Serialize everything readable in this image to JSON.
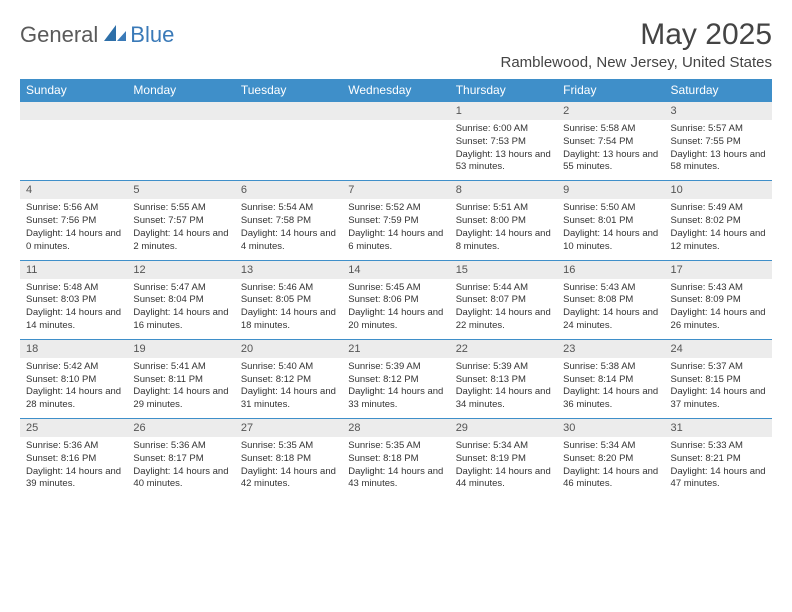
{
  "logo": {
    "general": "General",
    "blue": "Blue"
  },
  "title": "May 2025",
  "location": "Ramblewood, New Jersey, United States",
  "colors": {
    "header_bg": "#3f8fc9",
    "header_text": "#ffffff",
    "daynum_bg": "#ececec",
    "border": "#3f8fc9",
    "logo_blue": "#3a7ab8"
  },
  "daynames": [
    "Sunday",
    "Monday",
    "Tuesday",
    "Wednesday",
    "Thursday",
    "Friday",
    "Saturday"
  ],
  "weeks": [
    [
      null,
      null,
      null,
      null,
      {
        "n": "1",
        "sr": "6:00 AM",
        "ss": "7:53 PM",
        "dl": "13 hours and 53 minutes."
      },
      {
        "n": "2",
        "sr": "5:58 AM",
        "ss": "7:54 PM",
        "dl": "13 hours and 55 minutes."
      },
      {
        "n": "3",
        "sr": "5:57 AM",
        "ss": "7:55 PM",
        "dl": "13 hours and 58 minutes."
      }
    ],
    [
      {
        "n": "4",
        "sr": "5:56 AM",
        "ss": "7:56 PM",
        "dl": "14 hours and 0 minutes."
      },
      {
        "n": "5",
        "sr": "5:55 AM",
        "ss": "7:57 PM",
        "dl": "14 hours and 2 minutes."
      },
      {
        "n": "6",
        "sr": "5:54 AM",
        "ss": "7:58 PM",
        "dl": "14 hours and 4 minutes."
      },
      {
        "n": "7",
        "sr": "5:52 AM",
        "ss": "7:59 PM",
        "dl": "14 hours and 6 minutes."
      },
      {
        "n": "8",
        "sr": "5:51 AM",
        "ss": "8:00 PM",
        "dl": "14 hours and 8 minutes."
      },
      {
        "n": "9",
        "sr": "5:50 AM",
        "ss": "8:01 PM",
        "dl": "14 hours and 10 minutes."
      },
      {
        "n": "10",
        "sr": "5:49 AM",
        "ss": "8:02 PM",
        "dl": "14 hours and 12 minutes."
      }
    ],
    [
      {
        "n": "11",
        "sr": "5:48 AM",
        "ss": "8:03 PM",
        "dl": "14 hours and 14 minutes."
      },
      {
        "n": "12",
        "sr": "5:47 AM",
        "ss": "8:04 PM",
        "dl": "14 hours and 16 minutes."
      },
      {
        "n": "13",
        "sr": "5:46 AM",
        "ss": "8:05 PM",
        "dl": "14 hours and 18 minutes."
      },
      {
        "n": "14",
        "sr": "5:45 AM",
        "ss": "8:06 PM",
        "dl": "14 hours and 20 minutes."
      },
      {
        "n": "15",
        "sr": "5:44 AM",
        "ss": "8:07 PM",
        "dl": "14 hours and 22 minutes."
      },
      {
        "n": "16",
        "sr": "5:43 AM",
        "ss": "8:08 PM",
        "dl": "14 hours and 24 minutes."
      },
      {
        "n": "17",
        "sr": "5:43 AM",
        "ss": "8:09 PM",
        "dl": "14 hours and 26 minutes."
      }
    ],
    [
      {
        "n": "18",
        "sr": "5:42 AM",
        "ss": "8:10 PM",
        "dl": "14 hours and 28 minutes."
      },
      {
        "n": "19",
        "sr": "5:41 AM",
        "ss": "8:11 PM",
        "dl": "14 hours and 29 minutes."
      },
      {
        "n": "20",
        "sr": "5:40 AM",
        "ss": "8:12 PM",
        "dl": "14 hours and 31 minutes."
      },
      {
        "n": "21",
        "sr": "5:39 AM",
        "ss": "8:12 PM",
        "dl": "14 hours and 33 minutes."
      },
      {
        "n": "22",
        "sr": "5:39 AM",
        "ss": "8:13 PM",
        "dl": "14 hours and 34 minutes."
      },
      {
        "n": "23",
        "sr": "5:38 AM",
        "ss": "8:14 PM",
        "dl": "14 hours and 36 minutes."
      },
      {
        "n": "24",
        "sr": "5:37 AM",
        "ss": "8:15 PM",
        "dl": "14 hours and 37 minutes."
      }
    ],
    [
      {
        "n": "25",
        "sr": "5:36 AM",
        "ss": "8:16 PM",
        "dl": "14 hours and 39 minutes."
      },
      {
        "n": "26",
        "sr": "5:36 AM",
        "ss": "8:17 PM",
        "dl": "14 hours and 40 minutes."
      },
      {
        "n": "27",
        "sr": "5:35 AM",
        "ss": "8:18 PM",
        "dl": "14 hours and 42 minutes."
      },
      {
        "n": "28",
        "sr": "5:35 AM",
        "ss": "8:18 PM",
        "dl": "14 hours and 43 minutes."
      },
      {
        "n": "29",
        "sr": "5:34 AM",
        "ss": "8:19 PM",
        "dl": "14 hours and 44 minutes."
      },
      {
        "n": "30",
        "sr": "5:34 AM",
        "ss": "8:20 PM",
        "dl": "14 hours and 46 minutes."
      },
      {
        "n": "31",
        "sr": "5:33 AM",
        "ss": "8:21 PM",
        "dl": "14 hours and 47 minutes."
      }
    ]
  ],
  "labels": {
    "sunrise": "Sunrise: ",
    "sunset": "Sunset: ",
    "daylight": "Daylight: "
  }
}
